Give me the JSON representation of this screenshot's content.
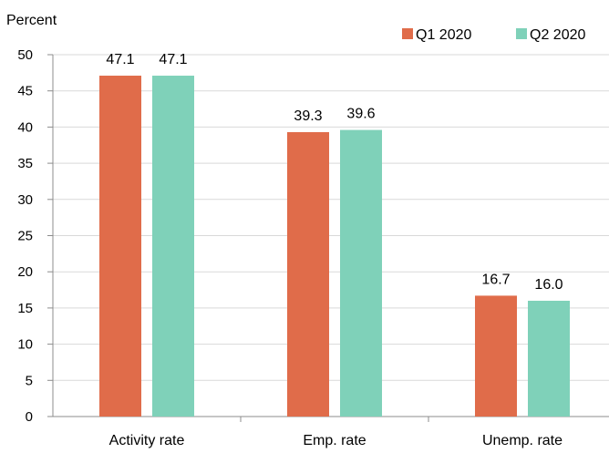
{
  "chart_data": {
    "type": "bar",
    "ylabel": "Percent",
    "categories": [
      "Activity rate",
      "Emp. rate",
      "Unemp. rate"
    ],
    "series": [
      {
        "name": "Q1 2020",
        "color": "#E06C4A",
        "values": [
          47.1,
          39.3,
          16.7
        ],
        "labels": [
          "47.1",
          "39.3",
          "16.7"
        ]
      },
      {
        "name": "Q2 2020",
        "color": "#7FD1B9",
        "values": [
          47.1,
          39.6,
          16.0
        ],
        "labels": [
          "47.1",
          "39.6",
          "16.0"
        ]
      }
    ],
    "ylim": [
      0,
      50
    ],
    "yticks": [
      0,
      5,
      10,
      15,
      20,
      25,
      30,
      35,
      40,
      45,
      50
    ],
    "grid": true,
    "legend_position": "top-right"
  }
}
